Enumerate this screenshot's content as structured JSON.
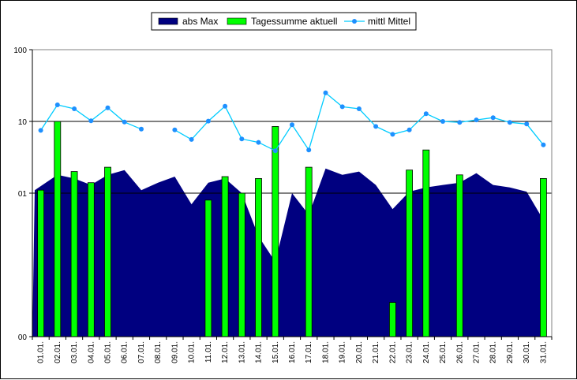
{
  "chart_data": {
    "type": "bar",
    "scale": "log",
    "ylim": [
      0.01,
      100
    ],
    "grid": true,
    "legend_position": "top-center",
    "y_tick_labels": [
      {
        "value": 100,
        "label": "100"
      },
      {
        "value": 10,
        "label": "10"
      },
      {
        "value": 1,
        "label": "01"
      },
      {
        "value": 0.01,
        "label": "00"
      }
    ],
    "categories": [
      "01.01.",
      "02.01.",
      "03.01.",
      "04.01.",
      "05.01.",
      "06.01.",
      "07.01.",
      "08.01.",
      "09.01.",
      "10.01.",
      "11.01.",
      "12.01.",
      "13.01.",
      "14.01.",
      "15.01.",
      "16.01.",
      "17.01.",
      "18.01.",
      "19.01.",
      "20.01.",
      "21.01.",
      "22.01.",
      "23.01.",
      "24.01.",
      "25.01.",
      "26.01.",
      "27.01.",
      "28.01.",
      "29.01.",
      "30.01.",
      "31.01."
    ],
    "series": [
      {
        "name": "abs Max",
        "kind": "area",
        "color": "#000080",
        "values": [
          1.1,
          1.8,
          1.6,
          1.3,
          1.8,
          2.1,
          1.1,
          1.4,
          1.7,
          0.7,
          1.4,
          1.6,
          1.0,
          0.25,
          0.11,
          1.0,
          0.5,
          2.2,
          1.8,
          2.0,
          1.3,
          0.6,
          1.05,
          1.2,
          1.3,
          1.4,
          1.9,
          1.3,
          1.2,
          1.05,
          0.45
        ]
      },
      {
        "name": "Tagessumme aktuell",
        "kind": "bar",
        "color": "#00ff00",
        "values": [
          1.1,
          10,
          2.0,
          1.4,
          2.3,
          null,
          null,
          null,
          null,
          null,
          0.8,
          1.7,
          1.0,
          1.6,
          8.5,
          null,
          2.3,
          null,
          null,
          null,
          null,
          0.03,
          2.1,
          4.0,
          null,
          1.8,
          null,
          null,
          null,
          null,
          1.6
        ]
      },
      {
        "name": "mittl Mittel",
        "kind": "line",
        "color": "#00ccff",
        "values": [
          7.5,
          17.0,
          15.0,
          10.2,
          15.5,
          9.8,
          7.8,
          null,
          7.6,
          5.6,
          10.1,
          16.3,
          5.7,
          5.1,
          3.9,
          9.0,
          4.0,
          25.0,
          16.0,
          15.0,
          8.5,
          6.6,
          7.6,
          12.8,
          10.0,
          9.7,
          10.5,
          11.3,
          9.7,
          9.2,
          4.7
        ]
      }
    ]
  }
}
